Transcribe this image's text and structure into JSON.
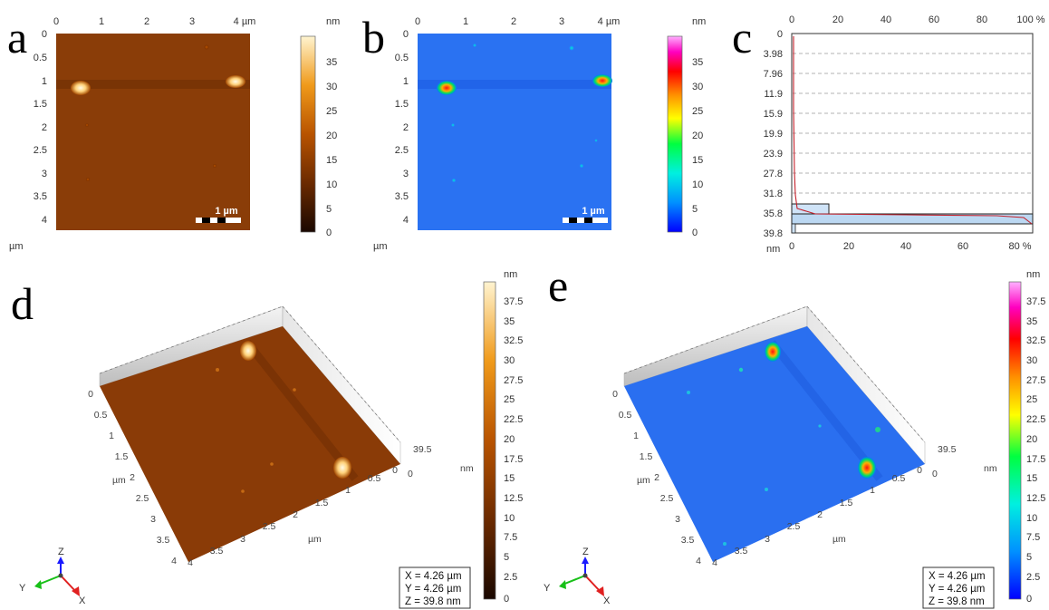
{
  "panels": {
    "a": {
      "label": "a",
      "x_ticks": [
        "0",
        "1",
        "2",
        "3",
        "4 µm"
      ],
      "y_ticks": [
        "0",
        "0.5",
        "1",
        "1.5",
        "2",
        "2.5",
        "3",
        "3.5",
        "4"
      ],
      "axis_unit": "µm",
      "scale_bar": "1 µm",
      "colorbar_unit": "nm",
      "colorbar_ticks": [
        "35",
        "30",
        "25",
        "20",
        "15",
        "10",
        "5",
        "0"
      ],
      "colormap": "copper",
      "colors": [
        "#1a0800",
        "#6b2a00",
        "#b85300",
        "#f09a1a",
        "#fff4d0"
      ]
    },
    "b": {
      "label": "b",
      "x_ticks": [
        "0",
        "1",
        "2",
        "3",
        "4 µm"
      ],
      "y_ticks": [
        "0",
        "0.5",
        "1",
        "1.5",
        "2",
        "2.5",
        "3",
        "3.5",
        "4"
      ],
      "axis_unit": "µm",
      "scale_bar": "1 µm",
      "colorbar_unit": "nm",
      "colorbar_ticks": [
        "35",
        "30",
        "25",
        "20",
        "15",
        "10",
        "5",
        "0"
      ],
      "colormap": "rainbow",
      "colors": [
        "#0000ff",
        "#00b4ff",
        "#00ff66",
        "#ffff00",
        "#ff8000",
        "#ff0000",
        "#ff00c8",
        "#ffa0ff"
      ]
    },
    "c": {
      "label": "c",
      "top_ticks": [
        "0",
        "20",
        "40",
        "60",
        "80",
        "100 %"
      ],
      "bottom_ticks": [
        "0",
        "20",
        "40",
        "60",
        "80 %"
      ],
      "y_ticks": [
        "0",
        "3.98",
        "7.96",
        "11.9",
        "15.9",
        "19.9",
        "23.9",
        "27.8",
        "31.8",
        "35.8",
        "39.8"
      ],
      "y_unit": "nm"
    },
    "d": {
      "label": "d",
      "front_ticks": [
        "4",
        "3.5",
        "3",
        "2.5",
        "2",
        "1.5",
        "1",
        "0.5",
        "0"
      ],
      "left_ticks": [
        "0",
        "0.5",
        "1",
        "1.5",
        "2",
        "2.5",
        "3",
        "3.5",
        "4"
      ],
      "axis_unit": "µm",
      "z_max": "39.5",
      "z_min": "0",
      "z_unit": "nm",
      "colorbar_unit": "nm",
      "colorbar_ticks": [
        "37.5",
        "35",
        "32.5",
        "30",
        "27.5",
        "25",
        "22.5",
        "20",
        "17.5",
        "15",
        "12.5",
        "10",
        "7.5",
        "5",
        "2.5",
        "0"
      ],
      "info": [
        "X = 4.26 µm",
        "Y = 4.26 µm",
        "Z = 39.8 nm"
      ],
      "triad": [
        "X",
        "Y",
        "Z"
      ]
    },
    "e": {
      "label": "e",
      "front_ticks": [
        "4",
        "3.5",
        "3",
        "2.5",
        "2",
        "1.5",
        "1",
        "0.5",
        "0"
      ],
      "left_ticks": [
        "0",
        "0.5",
        "1",
        "1.5",
        "2",
        "2.5",
        "3",
        "3.5",
        "4"
      ],
      "axis_unit": "µm",
      "z_max": "39.5",
      "z_min": "0",
      "z_unit": "nm",
      "colorbar_unit": "nm",
      "colorbar_ticks": [
        "37.5",
        "35",
        "32.5",
        "30",
        "27.5",
        "25",
        "22.5",
        "20",
        "17.5",
        "15",
        "12.5",
        "10",
        "7.5",
        "5",
        "2.5",
        "0"
      ],
      "info": [
        "X = 4.26 µm",
        "Y = 4.26 µm",
        "Z = 39.8 nm"
      ],
      "triad": [
        "X",
        "Y",
        "Z"
      ]
    }
  }
}
